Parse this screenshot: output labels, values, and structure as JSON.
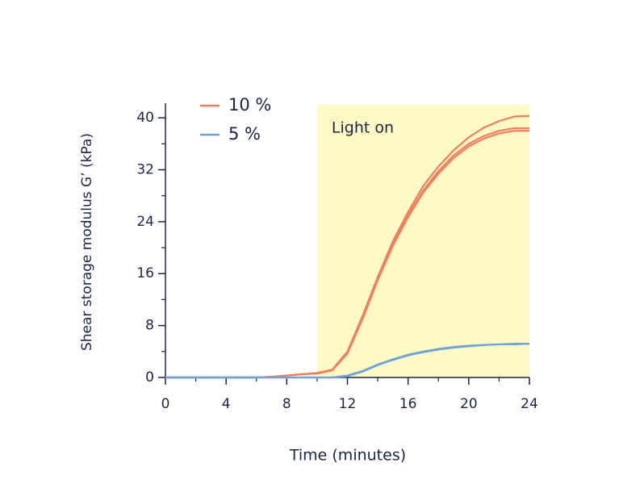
{
  "chart_data": {
    "type": "line",
    "x_label": "Time (minutes)",
    "y_label": "Shear storage modulus G’ (kPa)",
    "x": [
      0,
      1,
      2,
      3,
      4,
      5,
      6,
      7,
      8,
      9,
      10,
      11,
      12,
      13,
      14,
      15,
      16,
      17,
      18,
      19,
      20,
      21,
      22,
      23,
      24
    ],
    "series": [
      {
        "name": "10 %",
        "color": "#f07f5e",
        "runs": [
          [
            0,
            0,
            0,
            0,
            0,
            0,
            0,
            0.1,
            0.3,
            0.5,
            0.7,
            1.2,
            4,
            9.5,
            15.5,
            21,
            25.5,
            29.5,
            32.5,
            35,
            37,
            38.5,
            39.5,
            40.2,
            40.3
          ],
          [
            0,
            0,
            0,
            0,
            0,
            0,
            0,
            0.1,
            0.3,
            0.5,
            0.6,
            1.1,
            3.8,
            9.2,
            15.3,
            20.5,
            25,
            28.8,
            31.8,
            34.2,
            36,
            37.2,
            38,
            38.4,
            38.4
          ],
          [
            0,
            0,
            0,
            0,
            0,
            0,
            0,
            0.1,
            0.3,
            0.5,
            0.6,
            1.1,
            3.7,
            9,
            15,
            20.3,
            24.7,
            28.5,
            31.4,
            33.8,
            35.6,
            36.8,
            37.6,
            38,
            38
          ]
        ]
      },
      {
        "name": "5 %",
        "color": "#6fa3d8",
        "runs": [
          [
            0,
            0,
            0,
            0,
            0,
            0,
            0,
            0,
            0,
            0,
            0,
            0,
            0.3,
            1,
            2,
            2.8,
            3.5,
            4,
            4.4,
            4.7,
            4.9,
            5,
            5.1,
            5.2,
            5.2
          ],
          [
            0,
            0,
            0,
            0,
            0,
            0,
            0,
            0,
            0,
            0,
            0,
            0,
            0.2,
            0.9,
            1.9,
            2.7,
            3.4,
            3.9,
            4.3,
            4.6,
            4.8,
            5,
            5.1,
            5.1,
            5.2
          ]
        ]
      }
    ],
    "shaded": {
      "xlim": [
        10,
        24
      ],
      "label": "Light on",
      "color": "#fdfac6"
    },
    "xlim": [
      0,
      24
    ],
    "xticks": [
      0,
      4,
      8,
      12,
      16,
      20,
      24
    ],
    "xminorticks": [
      2,
      6,
      10,
      14,
      18,
      22
    ],
    "ylim": [
      0,
      42
    ],
    "yticks": [
      0,
      8,
      16,
      24,
      32,
      40
    ],
    "yminorticks": [
      4,
      12,
      20,
      28,
      36
    ]
  }
}
